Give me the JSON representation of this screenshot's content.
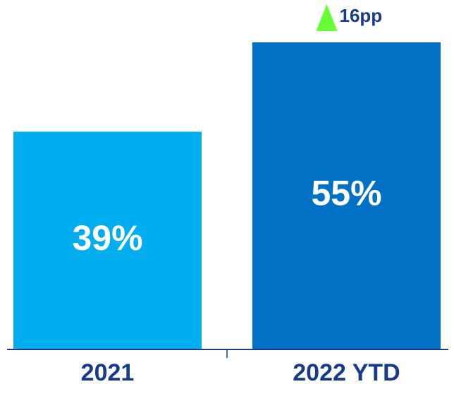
{
  "chart_data": {
    "type": "bar",
    "categories": [
      "2021",
      "2022 YTD"
    ],
    "values": [
      39,
      55
    ],
    "value_labels": [
      "39%",
      "55%"
    ],
    "bar_colors": [
      "#00adef",
      "#0071c5"
    ],
    "title": "",
    "xlabel": "",
    "ylabel": "",
    "ylim": [
      0,
      55
    ],
    "grid": false,
    "annotation": {
      "text": "16pp",
      "direction": "up",
      "icon": "up-triangle-icon",
      "color": "#66ff33",
      "attached_to": "2022 YTD"
    }
  },
  "colors": {
    "axis": "#173a8c",
    "label_text": "#173a8c",
    "value_text": "#ffffff"
  }
}
